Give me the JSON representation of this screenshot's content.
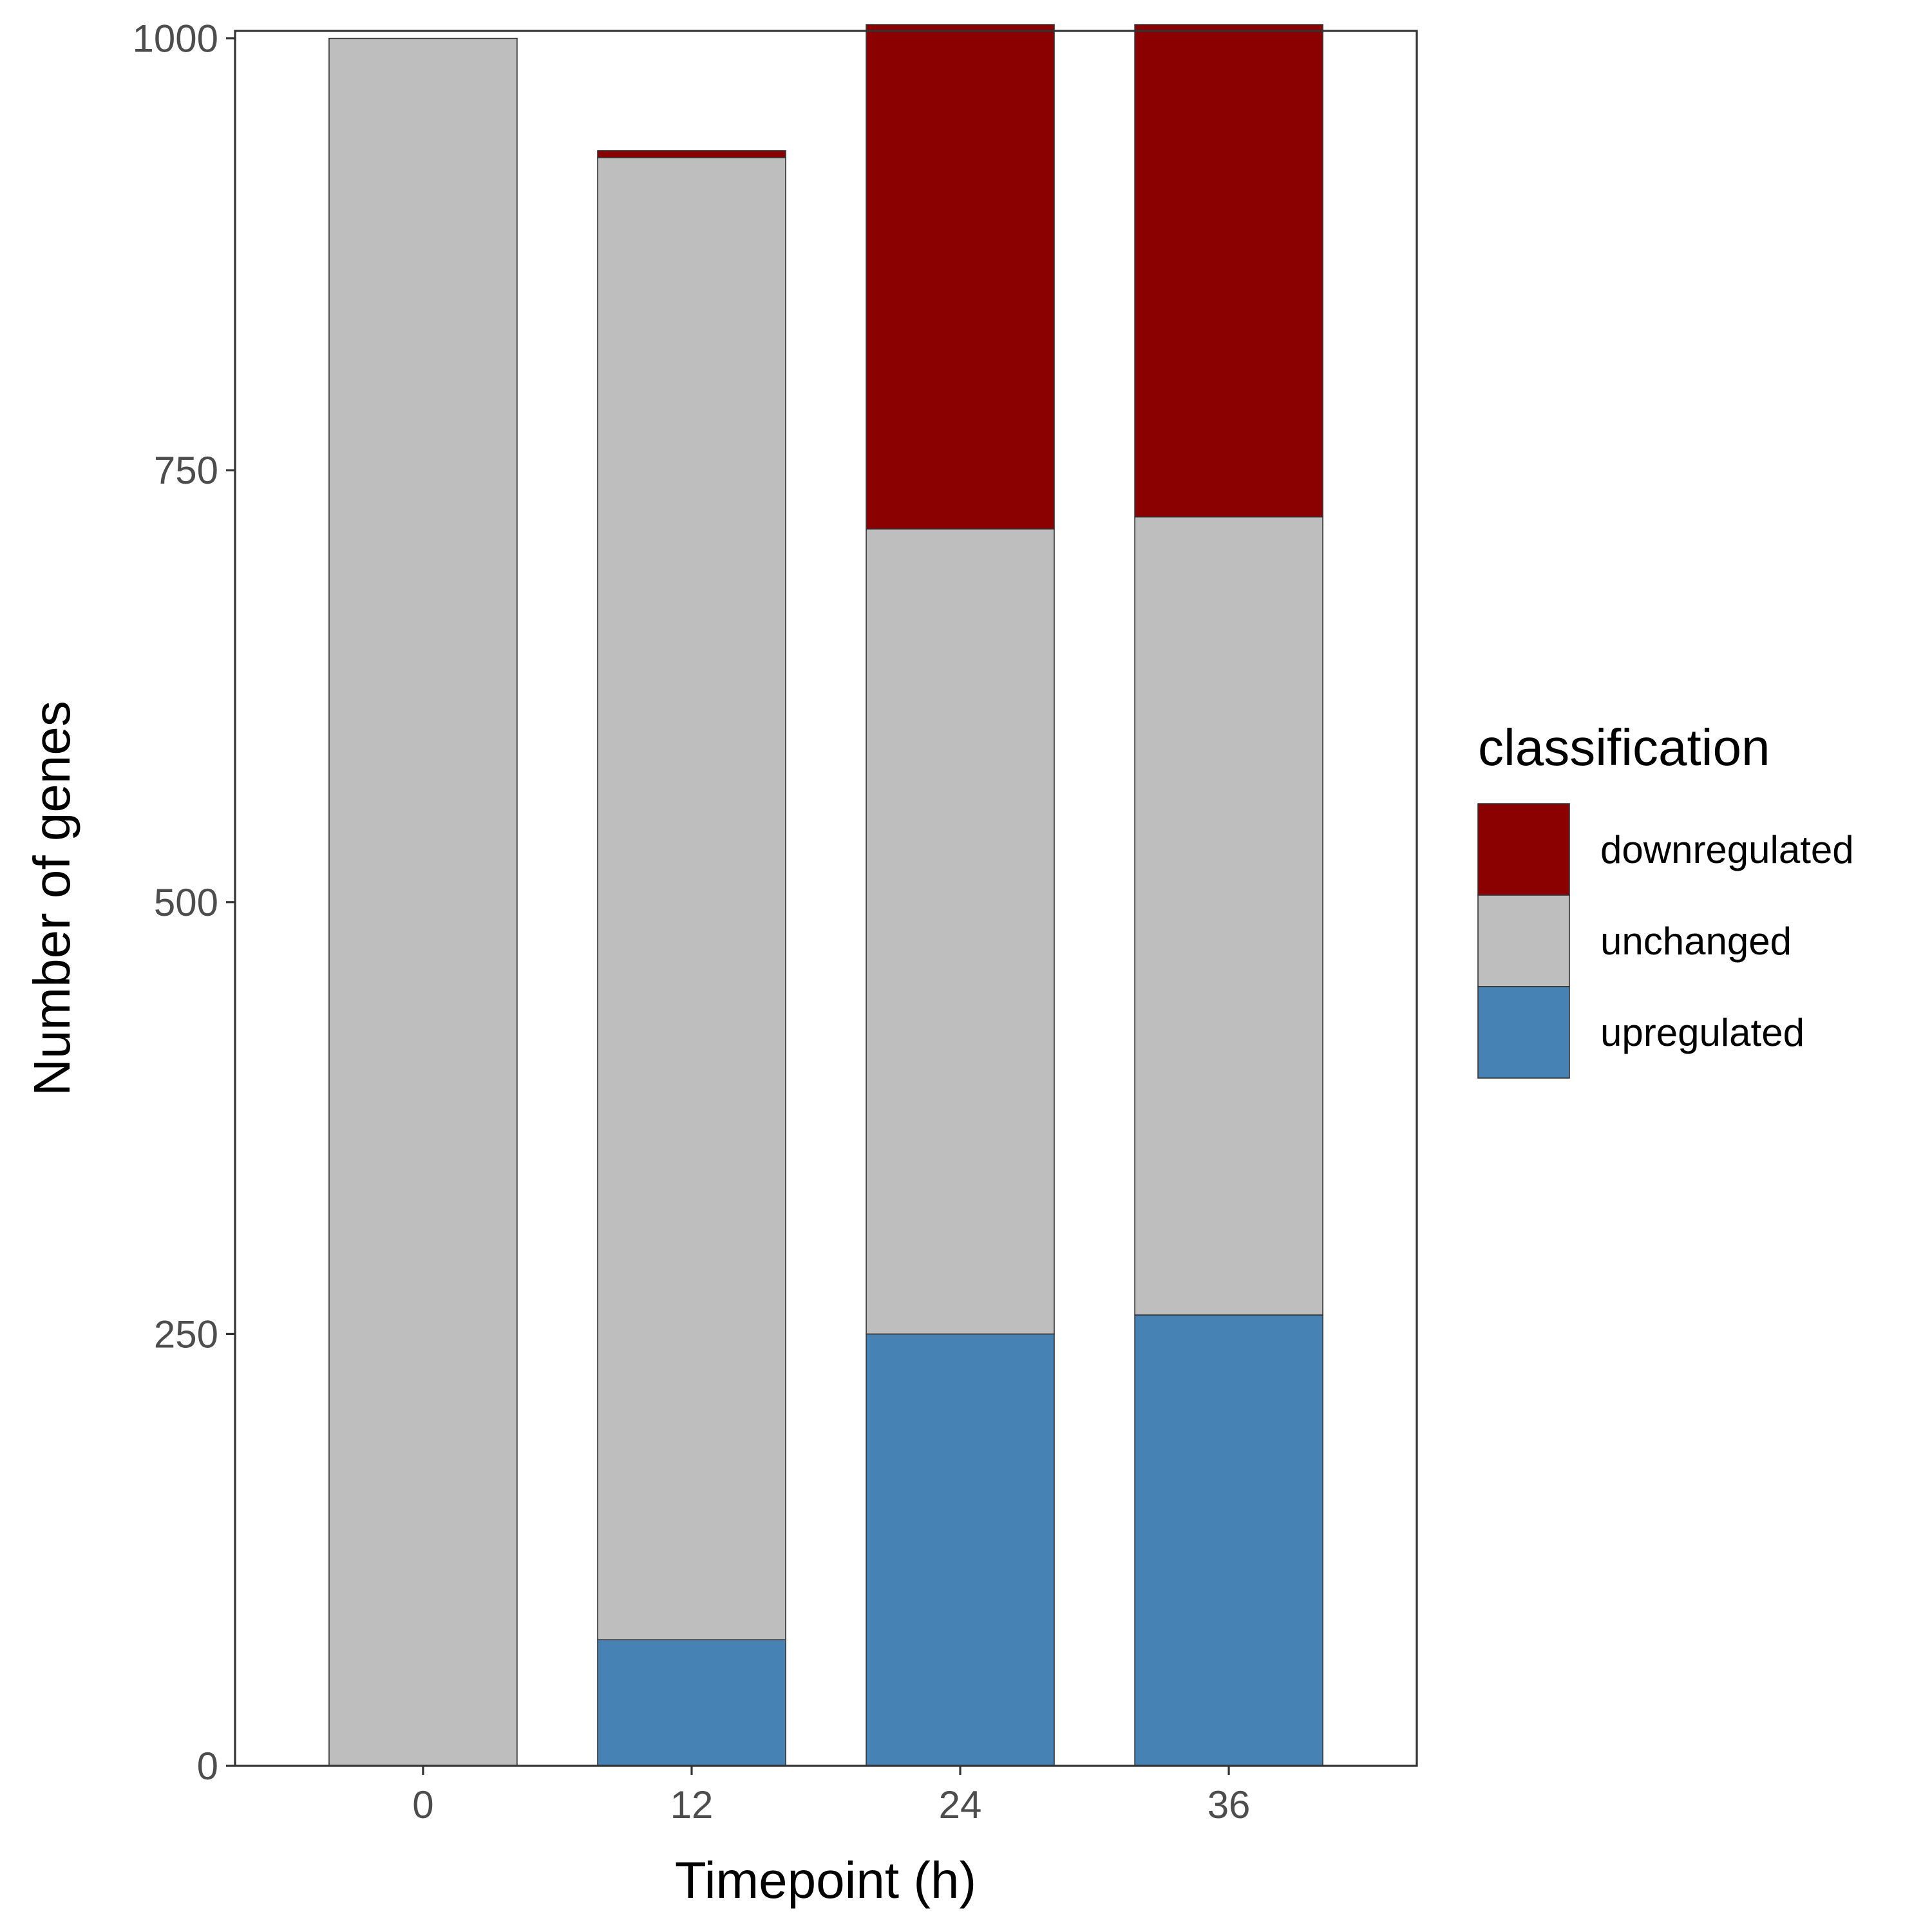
{
  "chart_data": {
    "type": "bar",
    "stacked": true,
    "title": "",
    "xlabel": "Timepoint (h)",
    "ylabel": "Number of genes",
    "categories": [
      "0",
      "12",
      "24",
      "36"
    ],
    "ylim": [
      0,
      1010
    ],
    "yticks": [
      "0",
      "250",
      "500",
      "750",
      "1000"
    ],
    "grid": false,
    "legend": {
      "title": "classification",
      "position": "right",
      "entries": [
        "downregulated",
        "unchanged",
        "upregulated"
      ]
    },
    "series": [
      {
        "name": "upregulated",
        "color": "#4682b4",
        "values": [
          0,
          73,
          250,
          261
        ]
      },
      {
        "name": "unchanged",
        "color": "#bebebe",
        "values": [
          1000,
          858,
          466,
          462
        ]
      },
      {
        "name": "downregulated",
        "color": "#8b0000",
        "values": [
          0,
          4,
          292,
          285
        ]
      }
    ]
  }
}
